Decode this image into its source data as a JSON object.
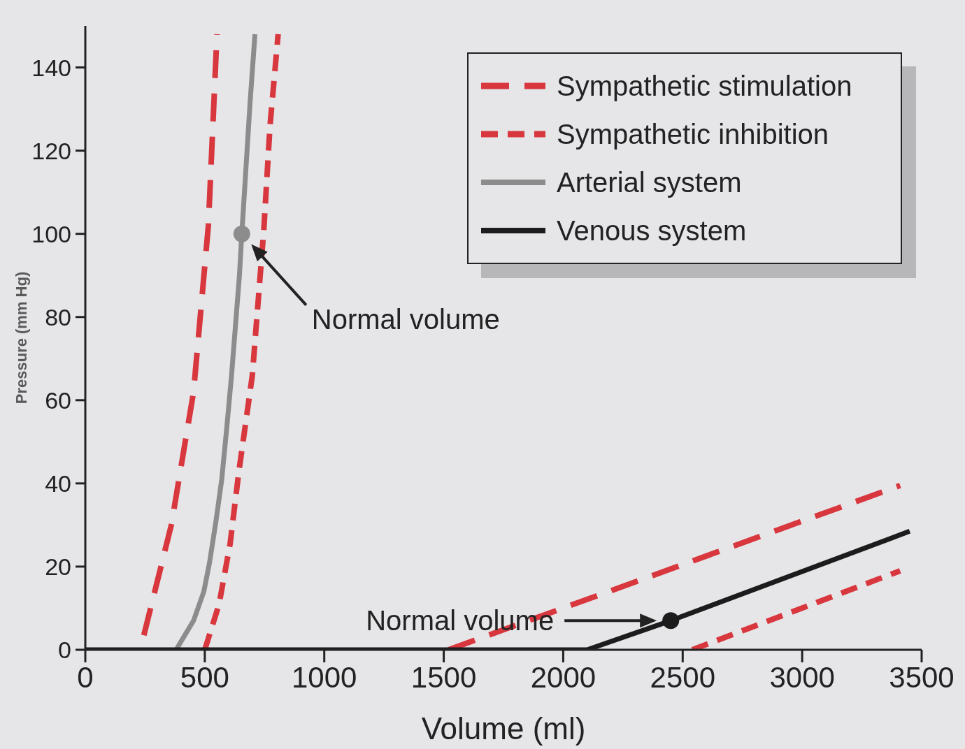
{
  "chart_data": {
    "type": "line",
    "xlabel": "Volume (ml)",
    "ylabel": "Pressure (mm Hg)",
    "xlim": [
      0,
      3500
    ],
    "xticks": [
      0,
      500,
      1000,
      1500,
      2000,
      2500,
      3000,
      3500
    ],
    "ylim": [
      0,
      150
    ],
    "yticks": [
      0,
      20,
      40,
      60,
      80,
      100,
      120,
      140
    ],
    "legend": "top right",
    "marker": "none",
    "series": [
      {
        "name": "Sympathetic stimulation",
        "color": "#d8373e",
        "line_style": "dashed",
        "x": [
          245,
          360,
          453,
          515,
          551,
          1000,
          1520,
          3410
        ],
        "values": [
          3.5,
          30,
          62,
          102,
          148,
          null,
          0,
          39.5
        ]
      },
      {
        "name": "Sympathetic inhibition",
        "color": "#d8373e",
        "line_style": "dashed",
        "x": [
          500,
          560,
          606,
          643,
          699,
          747,
          773,
          807,
          1500,
          2540,
          3410
        ],
        "values": [
          0,
          11,
          25.5,
          43,
          66,
          101,
          126,
          148,
          null,
          0,
          19
        ]
      },
      {
        "name": "Arterial system",
        "color": "#8c8c8c",
        "line_style": "solid",
        "x": [
          380,
          453,
          496,
          520,
          547,
          571,
          593,
          612,
          645,
          655,
          690,
          710
        ],
        "values": [
          0,
          7,
          14,
          21,
          31,
          41,
          54,
          66,
          90,
          100,
          132,
          148
        ]
      },
      {
        "name": "Venous system",
        "color": "#1c1c1c",
        "line_style": "solid",
        "x": [
          0,
          2100,
          2450,
          3450
        ],
        "values": [
          0,
          0,
          7,
          28.5
        ]
      },
      {
        "type": "scatter",
        "color": "#8c8c8c",
        "marker": "circle",
        "x": [
          655
        ],
        "values": [
          100
        ]
      },
      {
        "type": "scatter",
        "color": "#1c1c1c",
        "marker": "circle",
        "x": [
          2450
        ],
        "values": [
          7
        ]
      }
    ],
    "annotations": [
      "Normal volume",
      "Normal volume"
    ]
  }
}
